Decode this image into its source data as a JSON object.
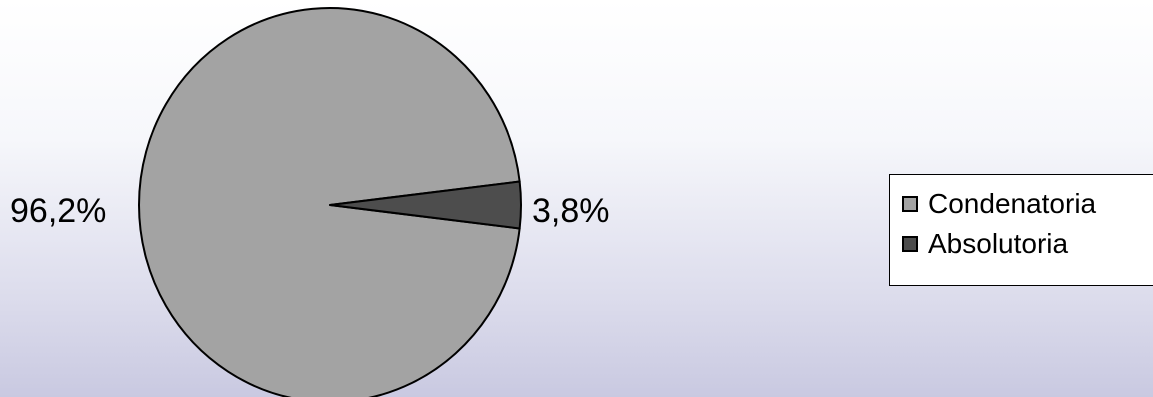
{
  "chart_data": {
    "type": "pie",
    "title": "",
    "slices": [
      {
        "label": "Condenatoria",
        "value": 96.2,
        "display": "96,2%",
        "color": "#a3a3a3"
      },
      {
        "label": "Absolutoria",
        "value": 3.8,
        "display": "3,8%",
        "color": "#4d4d4d"
      }
    ],
    "legend": {
      "position": "right",
      "entries": [
        "Condenatoria",
        "Absolutoria"
      ]
    }
  }
}
